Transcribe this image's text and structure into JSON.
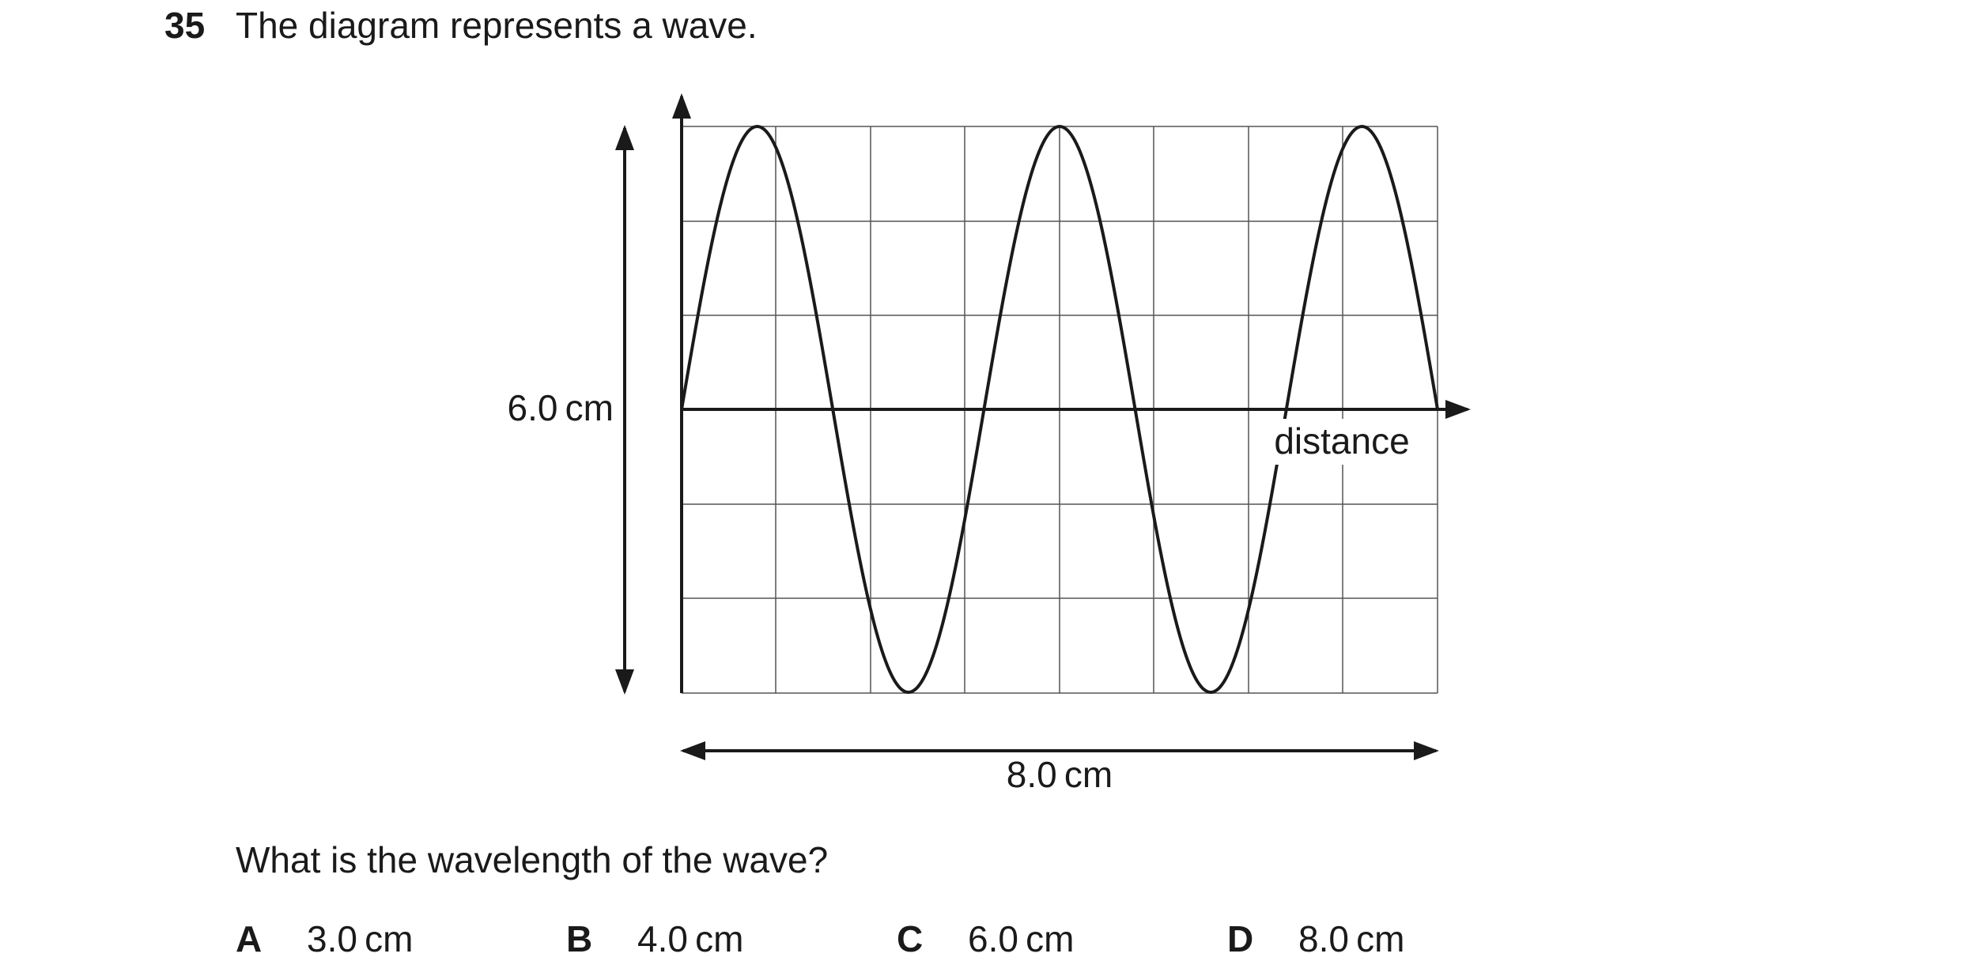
{
  "question": {
    "number": "35",
    "stem": "The diagram represents a wave.",
    "prompt": "What is the wavelength of the wave?"
  },
  "diagram": {
    "height_label": "6.0 cm",
    "width_label": "8.0 cm",
    "horizontal_axis_label": "distance",
    "line_color": "#1a1a1a",
    "grid_color": "#555555"
  },
  "options": [
    {
      "letter": "A",
      "text": "3.0 cm"
    },
    {
      "letter": "B",
      "text": "4.0 cm"
    },
    {
      "letter": "C",
      "text": "6.0 cm"
    },
    {
      "letter": "D",
      "text": "8.0 cm"
    }
  ]
}
